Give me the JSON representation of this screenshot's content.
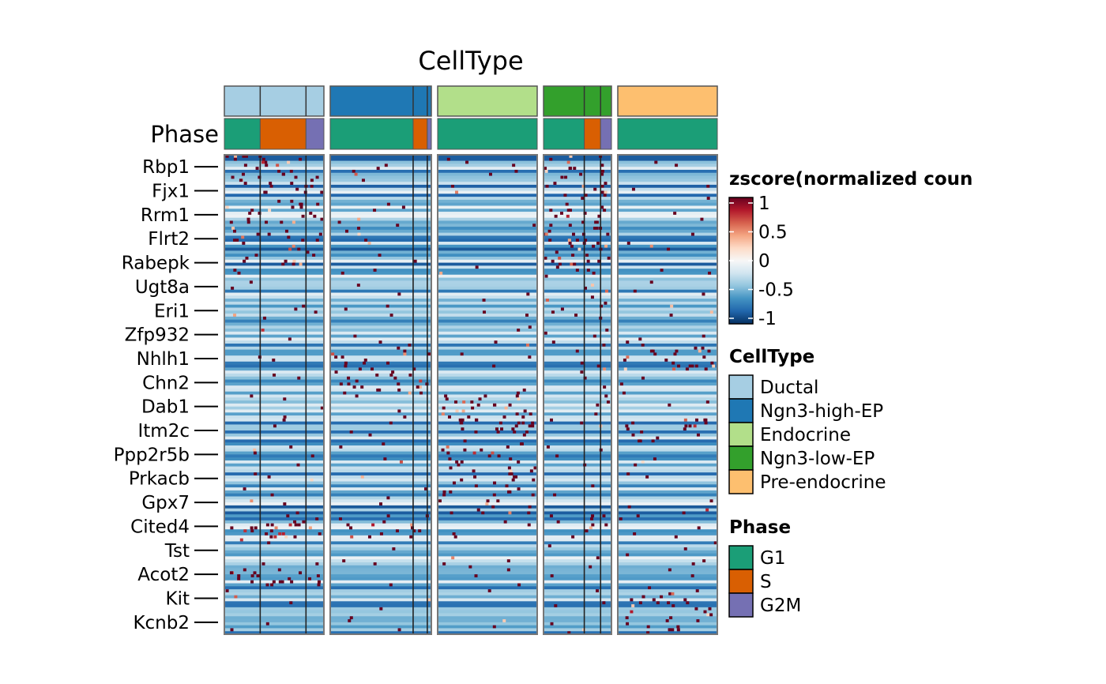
{
  "chart_data": {
    "type": "heatmap",
    "title": "CellType",
    "annotation_rows": [
      "CellType",
      "Phase"
    ],
    "genes": [
      "Rbp1",
      "Fjx1",
      "Rrm1",
      "Flrt2",
      "Rabepk",
      "Ugt8a",
      "Eri1",
      "Zfp932",
      "Nhlh1",
      "Chn2",
      "Dab1",
      "Itm2c",
      "Ppp2r5b",
      "Prkacb",
      "Gpx7",
      "Cited4",
      "Tst",
      "Acot2",
      "Kit",
      "Kcnb2"
    ],
    "groups": [
      {
        "celltype": "Ductal",
        "phases": [
          {
            "phase": "G1",
            "fraction": 0.36
          },
          {
            "phase": "S",
            "fraction": 0.46
          },
          {
            "phase": "G2M",
            "fraction": 0.18
          }
        ]
      },
      {
        "celltype": "Ngn3-high-EP",
        "phases": [
          {
            "phase": "G1",
            "fraction": 0.82
          },
          {
            "phase": "S",
            "fraction": 0.14
          },
          {
            "phase": "G2M",
            "fraction": 0.04
          }
        ]
      },
      {
        "celltype": "Endocrine",
        "phases": [
          {
            "phase": "G1",
            "fraction": 1.0
          }
        ]
      },
      {
        "celltype": "Ngn3-low-EP",
        "phases": [
          {
            "phase": "G1",
            "fraction": 0.6
          },
          {
            "phase": "S",
            "fraction": 0.24
          },
          {
            "phase": "G2M",
            "fraction": 0.16
          }
        ]
      },
      {
        "celltype": "Pre-endocrine",
        "phases": [
          {
            "phase": "G1",
            "fraction": 1.0
          }
        ]
      }
    ],
    "colorbar": {
      "title": "zscore(normalized coun",
      "min": -1,
      "max": 1,
      "ticks": [
        "1",
        "0.5",
        "0",
        "-0.5",
        "-1"
      ],
      "colors": [
        "#053061",
        "#2166ac",
        "#4393c3",
        "#92c5de",
        "#d1e5f0",
        "#f7f7f7",
        "#fddbc7",
        "#f4a582",
        "#d6604d",
        "#b2182b",
        "#67001f"
      ]
    },
    "legends": [
      {
        "title": "CellType",
        "entries": [
          {
            "label": "Ductal",
            "color": "#a6cee3"
          },
          {
            "label": "Ngn3-high-EP",
            "color": "#1f78b4"
          },
          {
            "label": "Endocrine",
            "color": "#b2df8a"
          },
          {
            "label": "Ngn3-low-EP",
            "color": "#33a02c"
          },
          {
            "label": "Pre-endocrine",
            "color": "#fdbf6f"
          }
        ]
      },
      {
        "title": "Phase",
        "entries": [
          {
            "label": "G1",
            "color": "#1b9e77"
          },
          {
            "label": "S",
            "color": "#d95f02"
          },
          {
            "label": "G2M",
            "color": "#7570b3"
          }
        ]
      }
    ],
    "high_expression_by_group": {
      "Ductal": [
        "Rbp1",
        "Fjx1",
        "Rrm1",
        "Flrt2",
        "Rabepk",
        "Cited4",
        "Acot2"
      ],
      "Ngn3-high-EP": [
        "Nhlh1",
        "Chn2",
        "Cited4"
      ],
      "Endocrine": [
        "Dab1",
        "Itm2c",
        "Ppp2r5b",
        "Prkacb",
        "Gpx7"
      ],
      "Ngn3-low-EP": [
        "Rbp1",
        "Fjx1",
        "Rrm1",
        "Flrt2",
        "Rabepk",
        "Cited4"
      ],
      "Pre-endocrine": [
        "Nhlh1",
        "Itm2c",
        "Kit",
        "Kcnb2"
      ]
    }
  }
}
